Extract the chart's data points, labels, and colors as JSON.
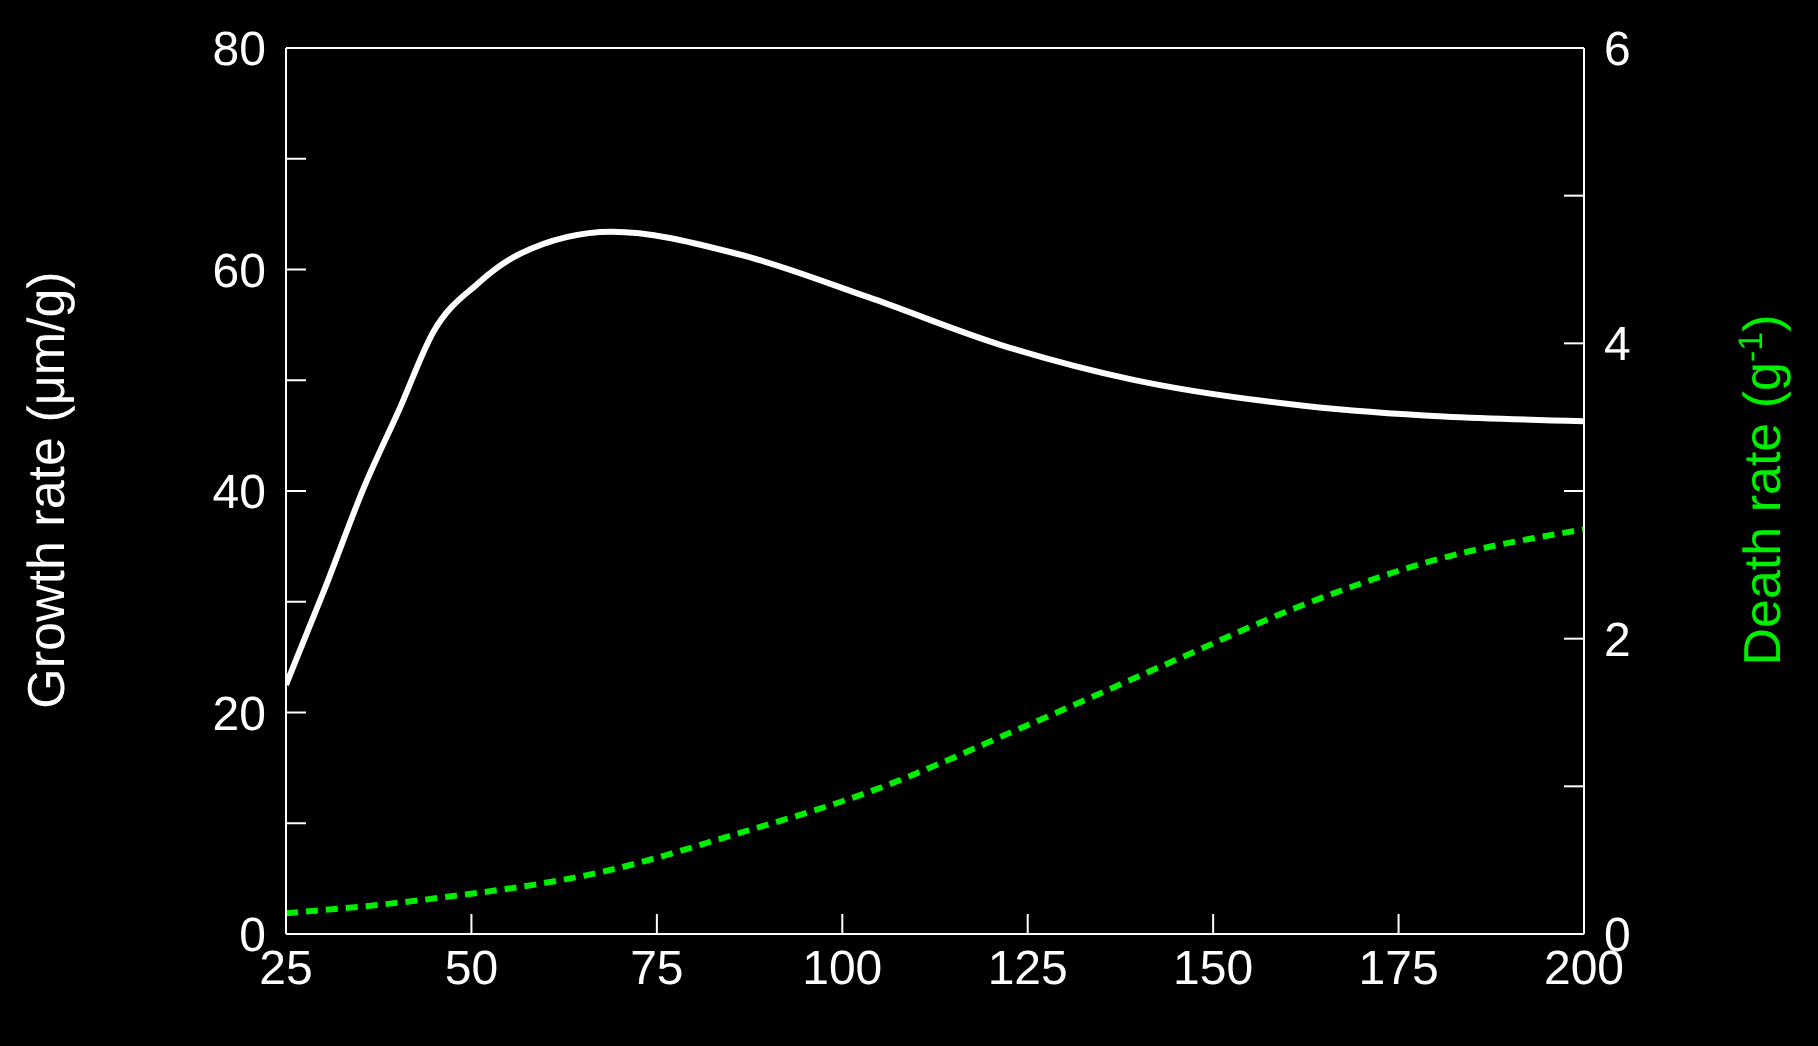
{
  "chart_data": {
    "type": "line",
    "ylabel": "Growth rate (μm/g)",
    "y2label": "Death rate (g$^{-1}$)",
    "xlim": [
      25,
      200
    ],
    "xticks": [
      25,
      50,
      75,
      100,
      125,
      150,
      175,
      200
    ],
    "ylim": [
      0,
      80
    ],
    "yticks": [
      0,
      {
        "value": 10,
        "label": null
      },
      20,
      {
        "value": 30,
        "label": null
      },
      40,
      {
        "value": 50,
        "label": null
      },
      60,
      {
        "value": 70,
        "label": null
      },
      80
    ],
    "y2lim": [
      0,
      6
    ],
    "y2ticks": [
      0,
      {
        "value": 1,
        "label": null
      },
      2,
      {
        "value": 3,
        "label": null
      },
      4,
      {
        "value": 5,
        "label": null
      },
      6
    ],
    "series": [
      {
        "color": "#ffffff",
        "line_style": "solid",
        "x": [
          25,
          30.3,
          35.5,
          40.3,
          44.9,
          50.8,
          56.5,
          68.9,
          85.9,
          103.5,
          121.3,
          138.8,
          162.2,
          200
        ],
        "values": [
          22.5,
          31.3,
          40.3,
          47.4,
          54.4,
          58.7,
          61.4,
          63.4,
          61.4,
          57.5,
          53.2,
          50.1,
          47.7,
          46.3
        ]
      },
      {
        "color": "#00ee00",
        "line_style": "dashed",
        "axis": "y2",
        "x": [
          25,
          44.9,
          68.4,
          85.9,
          103.5,
          124.8,
          144.7,
          162.2,
          179.7,
          200
        ],
        "values": [
          0.14,
          0.24,
          0.43,
          0.68,
          0.96,
          1.41,
          1.85,
          2.23,
          2.53,
          2.74
        ]
      }
    ]
  }
}
